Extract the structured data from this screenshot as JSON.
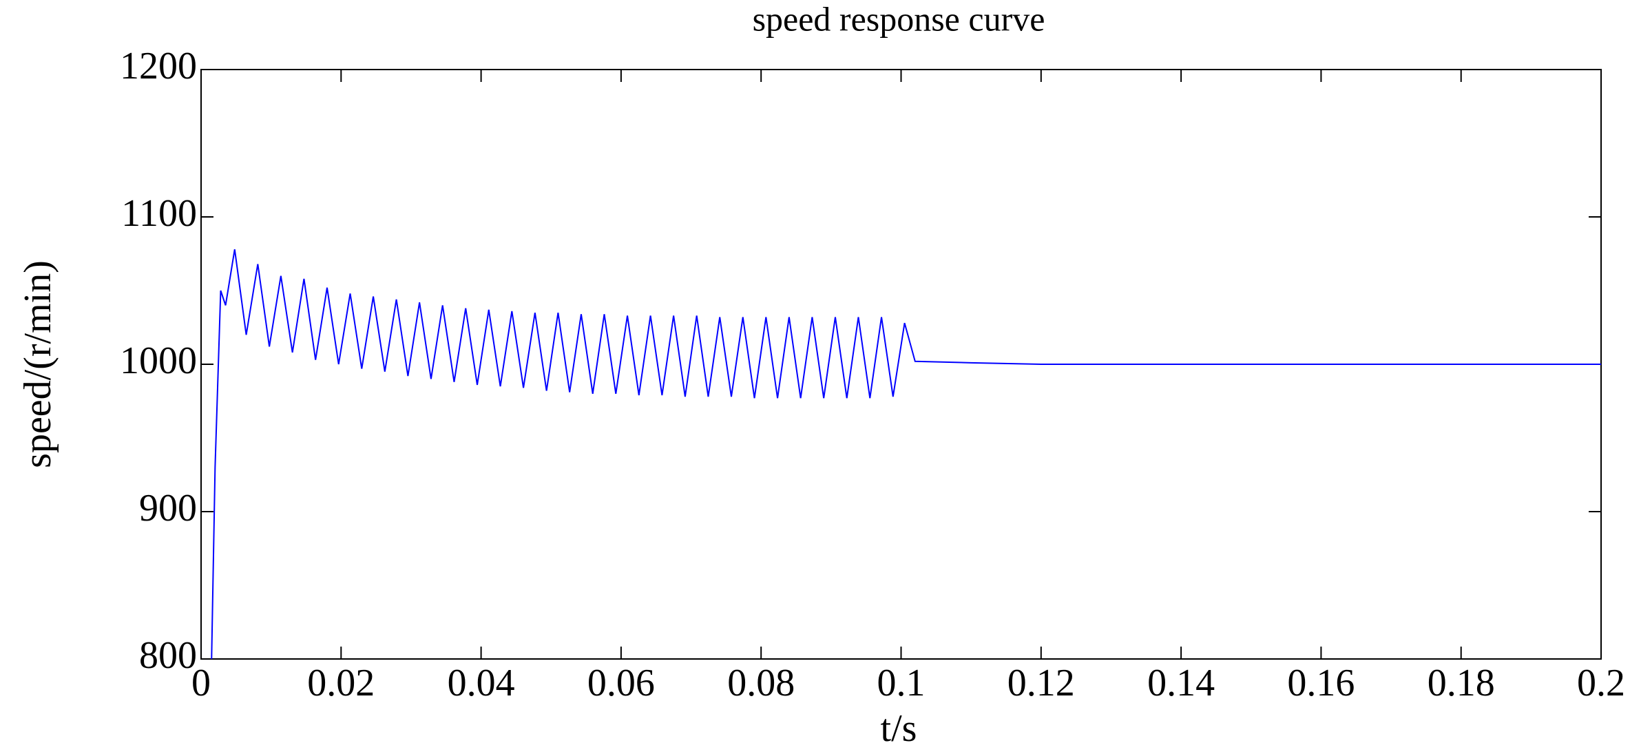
{
  "chart_data": {
    "type": "line",
    "title": "speed response curve",
    "x_label": "t/s",
    "y_label": "speed/(r/min)",
    "xlim": [
      0,
      0.2
    ],
    "ylim": [
      800,
      1200
    ],
    "xticks": [
      0,
      0.02,
      0.04,
      0.06,
      0.08,
      0.1,
      0.12,
      0.14,
      0.16,
      0.18,
      0.2
    ],
    "yticks": [
      800,
      900,
      1000,
      1100,
      1200
    ],
    "grid": false,
    "x": [
      0.0015,
      0.002,
      0.0028,
      0.0035,
      0.0048,
      0.00645,
      0.0081,
      0.00975,
      0.0114,
      0.01305,
      0.0147,
      0.01635,
      0.018,
      0.01965,
      0.0213,
      0.02295,
      0.0246,
      0.02625,
      0.0279,
      0.02955,
      0.0312,
      0.03285,
      0.0345,
      0.03615,
      0.0378,
      0.03945,
      0.0411,
      0.04275,
      0.0444,
      0.04605,
      0.0477,
      0.04935,
      0.051,
      0.05265,
      0.0543,
      0.05595,
      0.0576,
      0.05925,
      0.0609,
      0.06255,
      0.0642,
      0.06585,
      0.0675,
      0.06915,
      0.0708,
      0.07245,
      0.0741,
      0.07575,
      0.0774,
      0.07905,
      0.0807,
      0.08235,
      0.084,
      0.08565,
      0.0873,
      0.08895,
      0.0906,
      0.09225,
      0.0939,
      0.09555,
      0.0972,
      0.09885,
      0.1005,
      0.102,
      0.11,
      0.12,
      0.13,
      0.14,
      0.15,
      0.16,
      0.17,
      0.18,
      0.19,
      0.2
    ],
    "series": [
      {
        "name": "speed",
        "color": "#0000ff",
        "values": [
          800,
          930,
          1050,
          1040,
          1078,
          1020,
          1068,
          1012,
          1060,
          1008,
          1058,
          1003,
          1052,
          1000,
          1048,
          997,
          1046,
          995,
          1044,
          992,
          1042,
          990,
          1040,
          988,
          1038,
          986,
          1037,
          985,
          1036,
          984,
          1035,
          982,
          1035,
          981,
          1034,
          980,
          1034,
          980,
          1033,
          979,
          1033,
          979,
          1033,
          978,
          1033,
          978,
          1032,
          978,
          1032,
          977,
          1032,
          977,
          1032,
          977,
          1032,
          977,
          1032,
          977,
          1032,
          977,
          1032,
          978,
          1028,
          1002,
          1001,
          1000,
          1000,
          1000,
          1000,
          1000,
          1000,
          1000,
          1000,
          1000
        ]
      }
    ]
  }
}
